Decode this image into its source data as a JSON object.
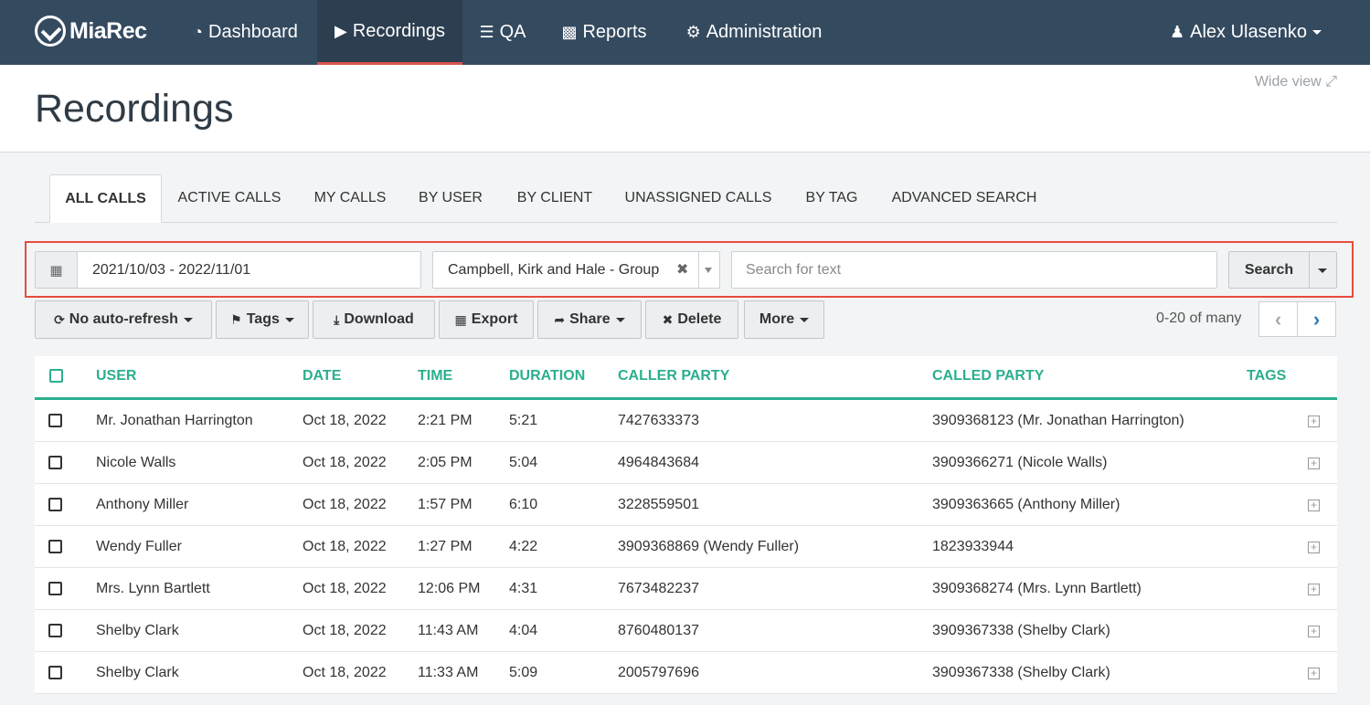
{
  "navbar": {
    "brand": "MiaRec",
    "items": [
      {
        "label": "Dashboard",
        "icon": "dashboard-icon"
      },
      {
        "label": "Recordings",
        "icon": "play-square-icon",
        "active": true
      },
      {
        "label": "QA",
        "icon": "list-icon"
      },
      {
        "label": "Reports",
        "icon": "bar-chart-icon"
      },
      {
        "label": "Administration",
        "icon": "gear-icon"
      }
    ],
    "user": "Alex Ulasenko"
  },
  "header": {
    "title": "Recordings",
    "wide_view": "Wide view"
  },
  "tabs": [
    "ALL CALLS",
    "ACTIVE CALLS",
    "MY CALLS",
    "BY USER",
    "BY CLIENT",
    "UNASSIGNED CALLS",
    "BY TAG",
    "ADVANCED SEARCH"
  ],
  "filters": {
    "date_range": "2021/10/03 - 2022/11/01",
    "client": "Campbell, Kirk and Hale - Group",
    "search_placeholder": "Search for text",
    "search_label": "Search"
  },
  "toolbar": {
    "auto_refresh": "No auto-refresh",
    "tags": "Tags",
    "download": "Download",
    "export": "Export",
    "share": "Share",
    "delete": "Delete",
    "more": "More",
    "pager": "0-20 of many"
  },
  "table": {
    "columns": [
      "USER",
      "DATE",
      "TIME",
      "DURATION",
      "CALLER PARTY",
      "CALLED PARTY",
      "TAGS"
    ],
    "rows": [
      {
        "user": "Mr. Jonathan Harrington",
        "date": "Oct 18, 2022",
        "time": "2:21 PM",
        "duration": "5:21",
        "caller": "7427633373",
        "called": "3909368123 (Mr. Jonathan Harrington)"
      },
      {
        "user": "Nicole Walls",
        "date": "Oct 18, 2022",
        "time": "2:05 PM",
        "duration": "5:04",
        "caller": "4964843684",
        "called": "3909366271 (Nicole Walls)"
      },
      {
        "user": "Anthony Miller",
        "date": "Oct 18, 2022",
        "time": "1:57 PM",
        "duration": "6:10",
        "caller": "3228559501",
        "called": "3909363665 (Anthony Miller)"
      },
      {
        "user": "Wendy Fuller",
        "date": "Oct 18, 2022",
        "time": "1:27 PM",
        "duration": "4:22",
        "caller": "3909368869 (Wendy Fuller)",
        "called": "1823933944"
      },
      {
        "user": "Mrs. Lynn Bartlett",
        "date": "Oct 18, 2022",
        "time": "12:06 PM",
        "duration": "4:31",
        "caller": "7673482237",
        "called": "3909368274 (Mrs. Lynn Bartlett)"
      },
      {
        "user": "Shelby Clark",
        "date": "Oct 18, 2022",
        "time": "11:43 AM",
        "duration": "4:04",
        "caller": "8760480137",
        "called": "3909367338 (Shelby Clark)"
      },
      {
        "user": "Shelby Clark",
        "date": "Oct 18, 2022",
        "time": "11:33 AM",
        "duration": "5:09",
        "caller": "2005797696",
        "called": "3909367338 (Shelby Clark)"
      }
    ]
  },
  "colors": {
    "navbar": "#344a5f",
    "accent": "#2baf8f",
    "highlight": "#e74c3c"
  }
}
